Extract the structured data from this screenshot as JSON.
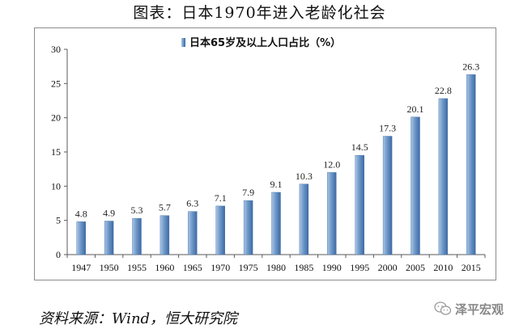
{
  "title": "图表：日本1970年进入老龄化社会",
  "source": "资料来源：Wind，恒大研究院",
  "watermark": {
    "text": "泽平宏观",
    "icon": "wechat-icon"
  },
  "colors": {
    "bar_light": "#a9c6e6",
    "bar_mid": "#6f98c8",
    "bar_dark": "#3d6aa5",
    "axis": "#595959"
  },
  "chart_data": {
    "type": "bar",
    "categories": [
      "1947",
      "1950",
      "1955",
      "1960",
      "1965",
      "1970",
      "1975",
      "1980",
      "1985",
      "1990",
      "1995",
      "2000",
      "2005",
      "2010",
      "2015"
    ],
    "series": [
      {
        "name": "日本65岁及以上人口占比（%）",
        "values": [
          4.8,
          4.9,
          5.3,
          5.7,
          6.3,
          7.1,
          7.9,
          9.1,
          10.3,
          12.0,
          14.5,
          17.3,
          20.1,
          22.8,
          26.3
        ],
        "labels": [
          "4.8",
          "4.9",
          "5.3",
          "5.7",
          "6.3",
          "7.1",
          "7.9",
          "9.1",
          "10.3",
          "12.0",
          "14.5",
          "17.3",
          "20.1",
          "22.8",
          "26.3"
        ]
      }
    ],
    "ylim": [
      0,
      30
    ],
    "yticks": [
      "0",
      "5",
      "10",
      "15",
      "20",
      "25",
      "30"
    ],
    "grid": false,
    "legend_position": "top-center"
  }
}
